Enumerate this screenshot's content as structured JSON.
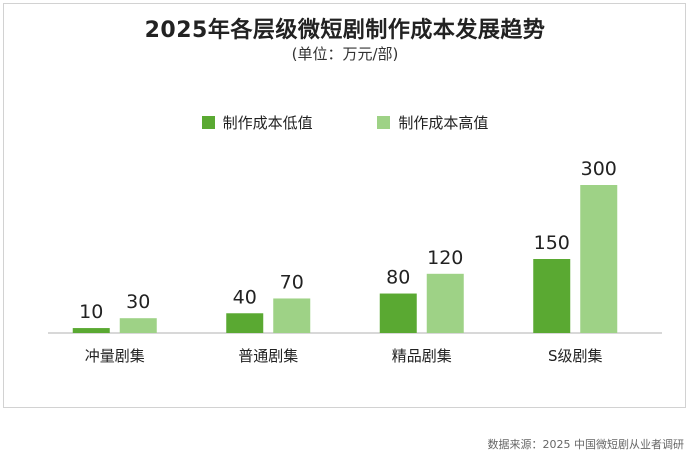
{
  "chart_data": {
    "type": "bar",
    "title": "2025年各层级微短剧制作成本发展趋势",
    "subtitle": "(单位：万元/部)",
    "categories": [
      "冲量剧集",
      "普通剧集",
      "精品剧集",
      "S级剧集"
    ],
    "series": [
      {
        "name": "制作成本低值",
        "values": [
          10,
          40,
          80,
          150
        ],
        "color": "#5aa932"
      },
      {
        "name": "制作成本高值",
        "values": [
          30,
          70,
          120,
          300
        ],
        "color": "#9ed286"
      }
    ],
    "ylim": [
      0,
      300
    ],
    "grid": false,
    "legend_position": "top-center",
    "axis_color": "#b0b0b0"
  },
  "footer": {
    "source": "数据来源：2025 中国微短剧从业者调研"
  }
}
